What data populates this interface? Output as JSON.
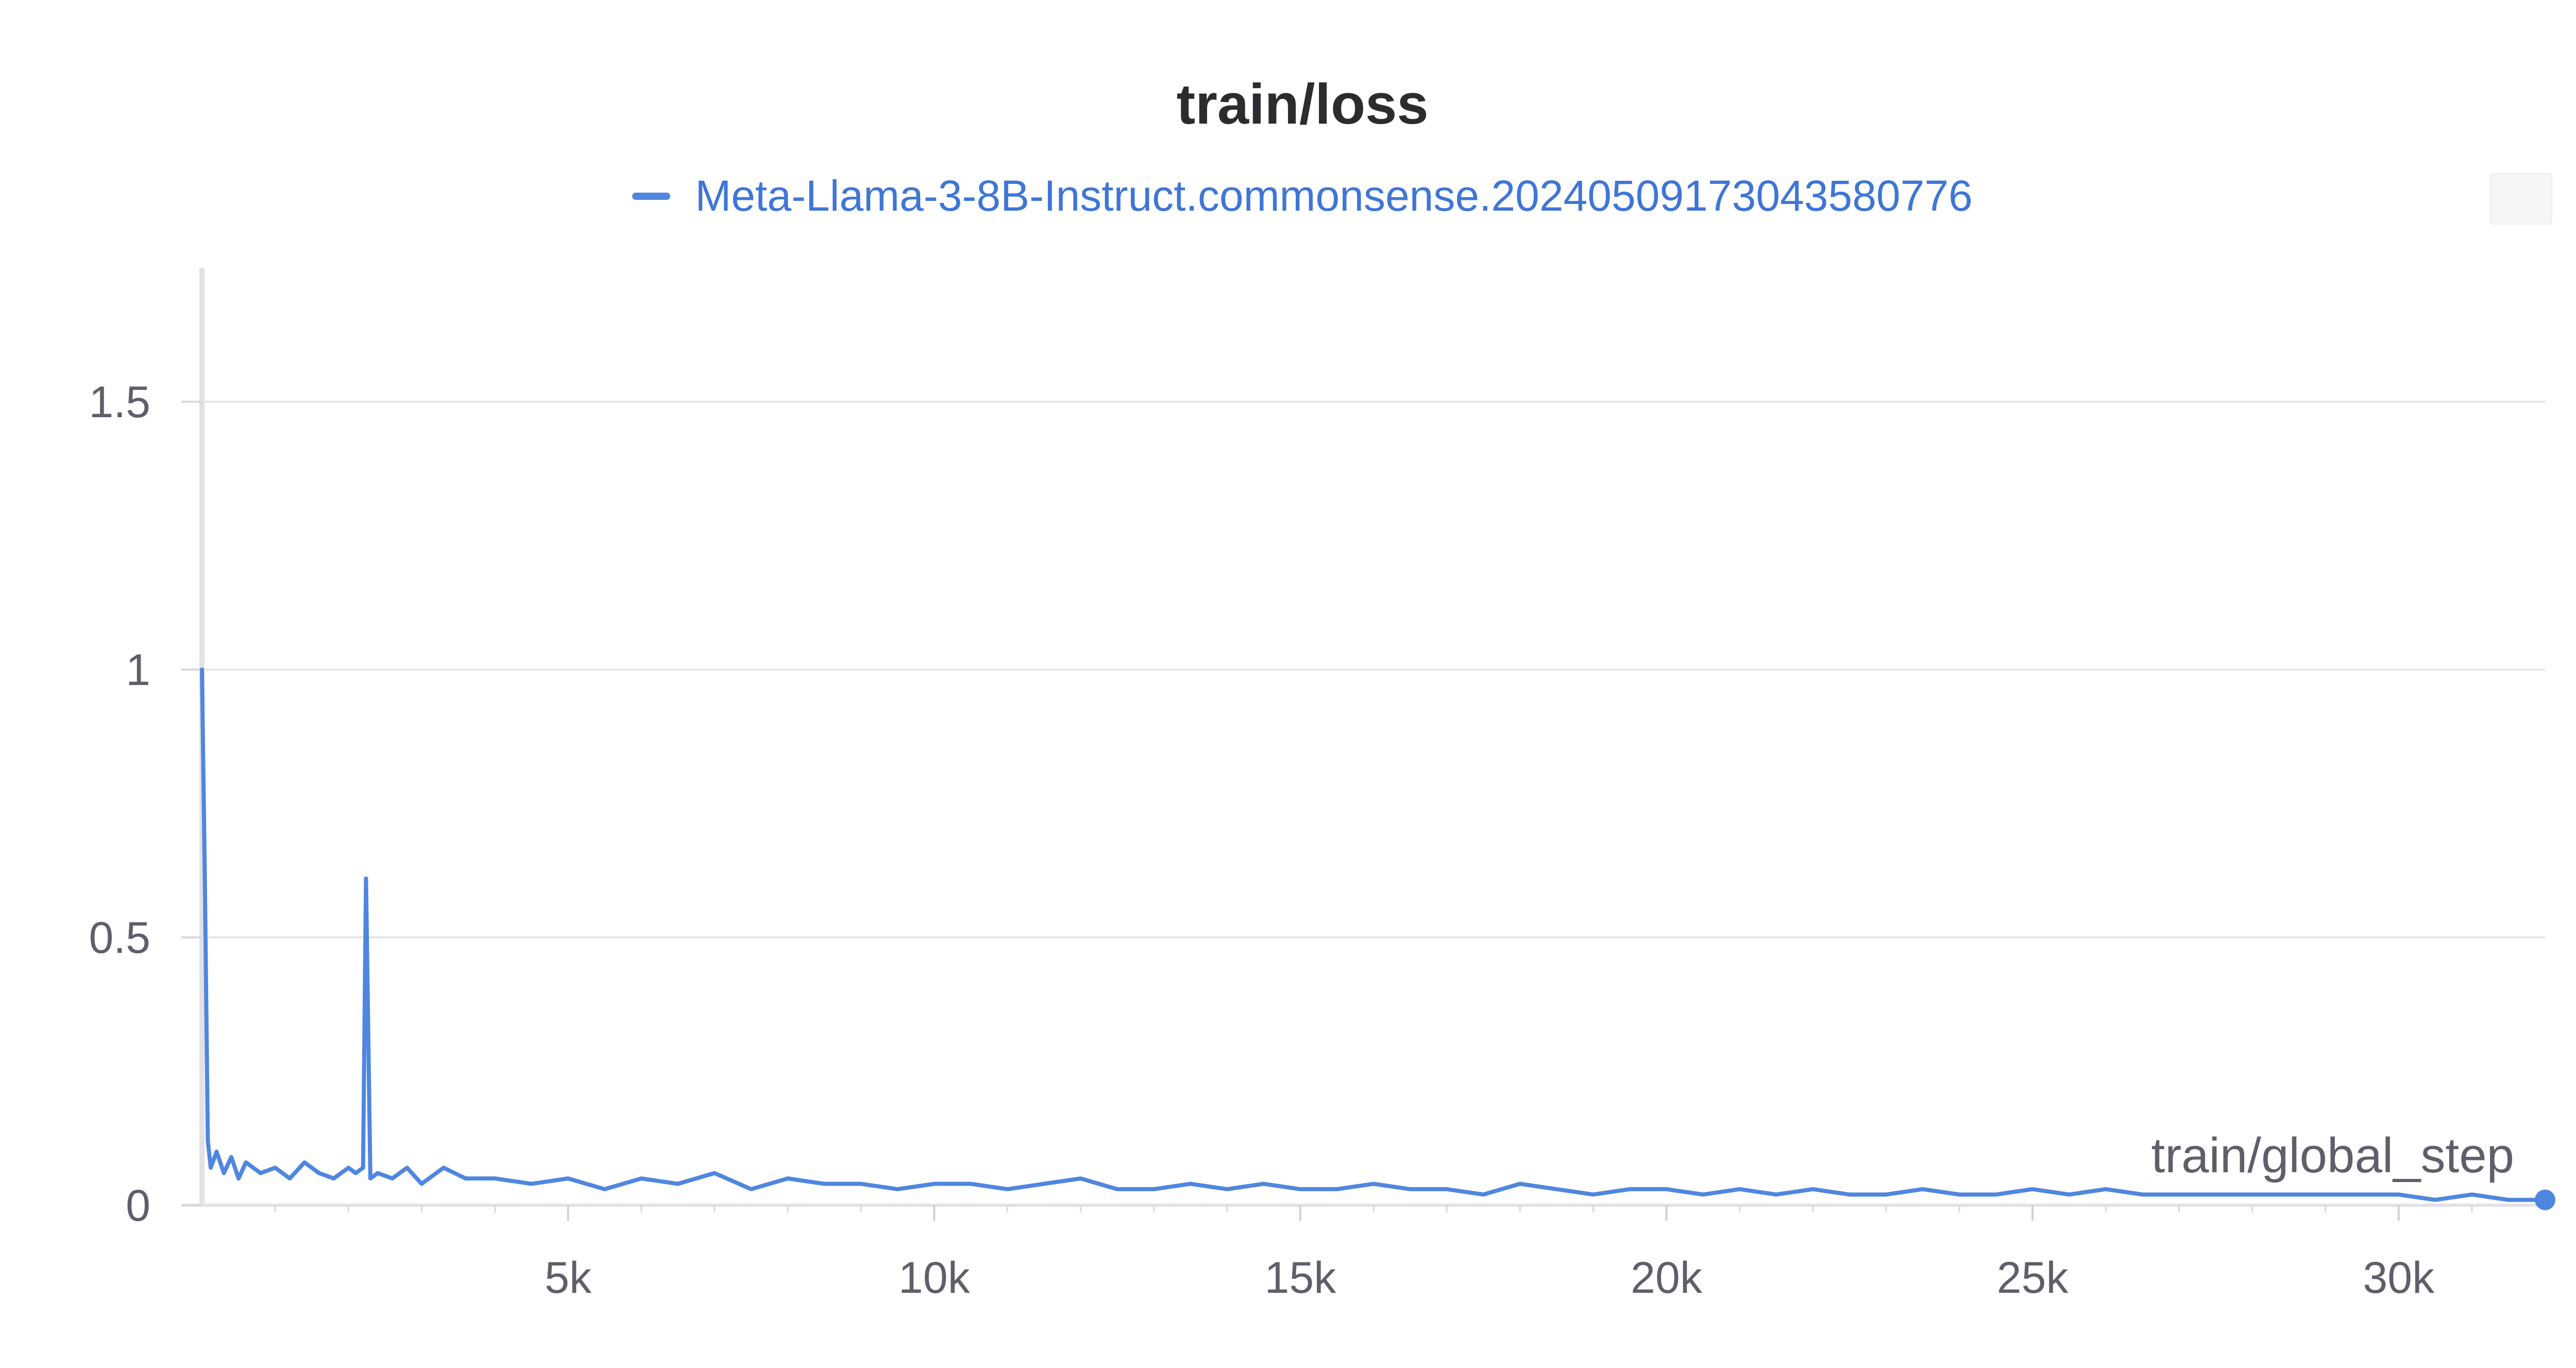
{
  "chart_data": {
    "type": "line",
    "title": "train/loss",
    "xlabel": "train/global_step",
    "ylabel": "",
    "xlim": [
      0,
      32000
    ],
    "ylim": [
      0,
      1.75
    ],
    "xticks": [
      {
        "value": 5000,
        "label": "5k"
      },
      {
        "value": 10000,
        "label": "10k"
      },
      {
        "value": 15000,
        "label": "15k"
      },
      {
        "value": 20000,
        "label": "20k"
      },
      {
        "value": 25000,
        "label": "25k"
      },
      {
        "value": 30000,
        "label": "30k"
      }
    ],
    "yticks": [
      {
        "value": 0,
        "label": "0"
      },
      {
        "value": 0.5,
        "label": "0.5"
      },
      {
        "value": 1,
        "label": "1"
      },
      {
        "value": 1.5,
        "label": "1.5"
      }
    ],
    "grid": true,
    "legend_position": "top-center",
    "series": [
      {
        "name": "Meta-Llama-3-8B-Instruct.commonsense.20240509173043580776",
        "color": "#4f86e0",
        "x": [
          0,
          40,
          80,
          120,
          200,
          300,
          400,
          500,
          600,
          800,
          1000,
          1200,
          1400,
          1600,
          1800,
          2000,
          2100,
          2200,
          2240,
          2300,
          2400,
          2600,
          2800,
          3000,
          3300,
          3600,
          4000,
          4500,
          5000,
          5500,
          6000,
          6500,
          7000,
          7500,
          8000,
          8500,
          9000,
          9500,
          10000,
          10500,
          11000,
          11500,
          12000,
          12500,
          13000,
          13500,
          14000,
          14500,
          15000,
          15500,
          16000,
          16500,
          17000,
          17500,
          18000,
          18500,
          19000,
          19500,
          20000,
          20500,
          21000,
          21500,
          22000,
          22500,
          23000,
          23500,
          24000,
          24500,
          25000,
          25500,
          26000,
          26500,
          27000,
          27500,
          28000,
          28500,
          29000,
          29500,
          30000,
          30500,
          31000,
          31500,
          32000
        ],
        "y": [
          1.0,
          0.6,
          0.12,
          0.07,
          0.1,
          0.06,
          0.09,
          0.05,
          0.08,
          0.06,
          0.07,
          0.05,
          0.08,
          0.06,
          0.05,
          0.07,
          0.06,
          0.07,
          0.61,
          0.05,
          0.06,
          0.05,
          0.07,
          0.04,
          0.07,
          0.05,
          0.05,
          0.04,
          0.05,
          0.03,
          0.05,
          0.04,
          0.06,
          0.03,
          0.05,
          0.04,
          0.04,
          0.03,
          0.04,
          0.04,
          0.03,
          0.04,
          0.05,
          0.03,
          0.03,
          0.04,
          0.03,
          0.04,
          0.03,
          0.03,
          0.04,
          0.03,
          0.03,
          0.02,
          0.04,
          0.03,
          0.02,
          0.03,
          0.03,
          0.02,
          0.03,
          0.02,
          0.03,
          0.02,
          0.02,
          0.03,
          0.02,
          0.02,
          0.03,
          0.02,
          0.03,
          0.02,
          0.02,
          0.02,
          0.02,
          0.02,
          0.02,
          0.02,
          0.02,
          0.01,
          0.02,
          0.01,
          0.01
        ]
      }
    ]
  }
}
